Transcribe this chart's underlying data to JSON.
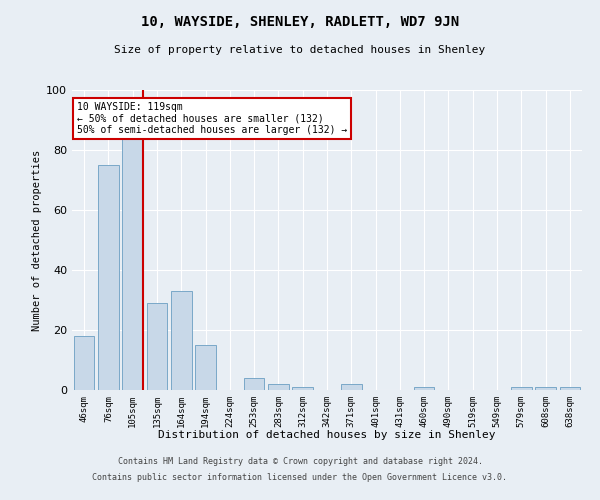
{
  "title": "10, WAYSIDE, SHENLEY, RADLETT, WD7 9JN",
  "subtitle": "Size of property relative to detached houses in Shenley",
  "xlabel": "Distribution of detached houses by size in Shenley",
  "ylabel": "Number of detached properties",
  "categories": [
    "46sqm",
    "76sqm",
    "105sqm",
    "135sqm",
    "164sqm",
    "194sqm",
    "224sqm",
    "253sqm",
    "283sqm",
    "312sqm",
    "342sqm",
    "371sqm",
    "401sqm",
    "431sqm",
    "460sqm",
    "490sqm",
    "519sqm",
    "549sqm",
    "579sqm",
    "608sqm",
    "638sqm"
  ],
  "values": [
    18,
    75,
    84,
    29,
    33,
    15,
    0,
    4,
    2,
    1,
    0,
    2,
    0,
    0,
    1,
    0,
    0,
    0,
    1,
    1,
    1
  ],
  "bar_color": "#c8d8e8",
  "bar_edge_color": "#7aa8c8",
  "vline_color": "#cc0000",
  "vline_x": 2.42,
  "annotation_text": "10 WAYSIDE: 119sqm\n← 50% of detached houses are smaller (132)\n50% of semi-detached houses are larger (132) →",
  "annotation_box_color": "#ffffff",
  "annotation_box_edge": "#cc0000",
  "ylim": [
    0,
    100
  ],
  "background_color": "#e8eef4",
  "footer1": "Contains HM Land Registry data © Crown copyright and database right 2024.",
  "footer2": "Contains public sector information licensed under the Open Government Licence v3.0."
}
